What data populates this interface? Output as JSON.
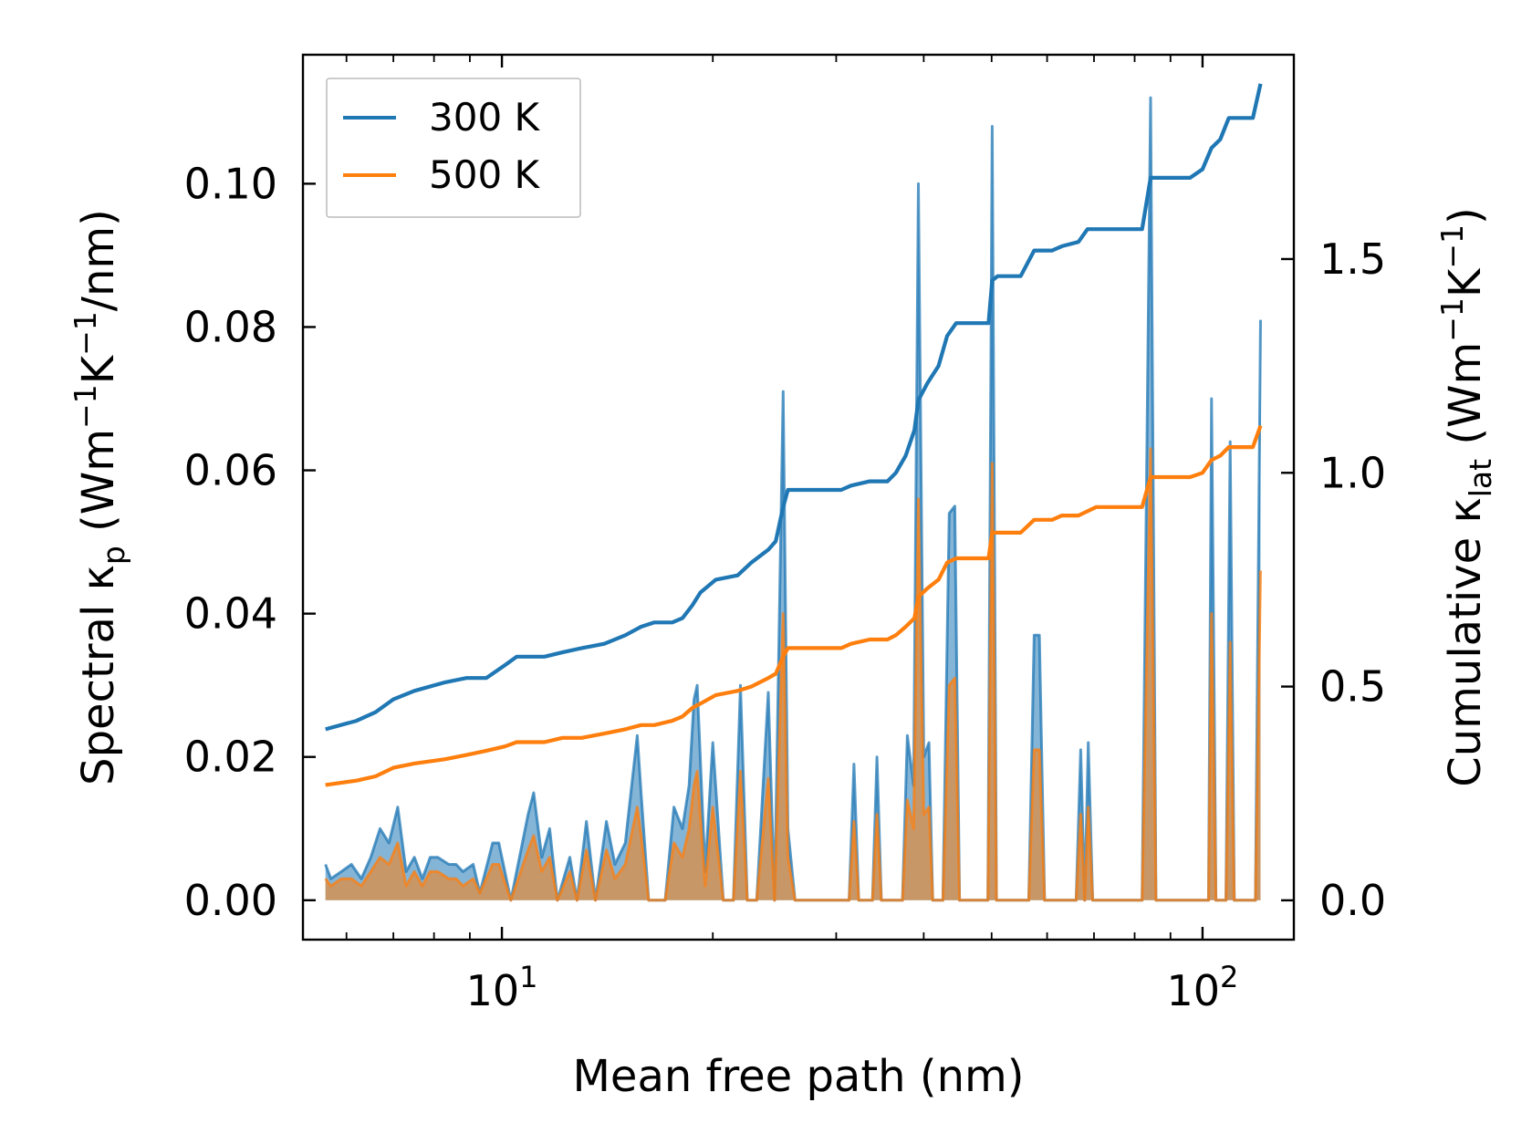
{
  "chart_data": {
    "type": "line",
    "xscale": "log",
    "xlim": [
      5.2,
      135
    ],
    "ylim_left": [
      -0.0055,
      0.118
    ],
    "ylim_right": [
      -0.092,
      1.9779
    ],
    "xlabel": "Mean free path (nm)",
    "ylabel_left": {
      "main": "Spectral κ",
      "sub": "p",
      "unit_open": " (Wm",
      "e1": "−1",
      "k": "K",
      "e2": "−1",
      "unit_close": "/nm)"
    },
    "ylabel_right": {
      "main": "Cumulative κ",
      "sub": "lat",
      "unit_open": " (Wm",
      "e1": "−1",
      "k": "K",
      "e2": "−1",
      "unit_close": ")"
    },
    "left_ticks": [
      {
        "value": 0.0,
        "label": "0.00"
      },
      {
        "value": 0.02,
        "label": "0.02"
      },
      {
        "value": 0.04,
        "label": "0.04"
      },
      {
        "value": 0.06,
        "label": "0.06"
      },
      {
        "value": 0.08,
        "label": "0.08"
      },
      {
        "value": 0.1,
        "label": "0.10"
      }
    ],
    "right_ticks": [
      {
        "value": 0.0,
        "label": "0.0"
      },
      {
        "value": 0.5,
        "label": "0.5"
      },
      {
        "value": 1.0,
        "label": "1.0"
      },
      {
        "value": 1.5,
        "label": "1.5"
      }
    ],
    "x_major_ticks": [
      {
        "value": 10,
        "base": "10",
        "exp": "1"
      },
      {
        "value": 100,
        "base": "10",
        "exp": "2"
      }
    ],
    "x_minor_ticks": [
      6,
      7,
      8,
      9,
      20,
      30,
      40,
      50,
      60,
      70,
      80,
      90
    ],
    "legend": {
      "position": "top-left",
      "entries": [
        "300 K",
        "500 K"
      ]
    },
    "series_colors": {
      "300 K": "#1f77b4",
      "500 K": "#ff7f0e"
    },
    "spectral": {
      "300 K": [
        [
          5.6,
          0.005
        ],
        [
          5.7,
          0.003
        ],
        [
          5.9,
          0.004
        ],
        [
          6.1,
          0.005
        ],
        [
          6.3,
          0.003
        ],
        [
          6.5,
          0.006
        ],
        [
          6.7,
          0.01
        ],
        [
          6.9,
          0.008
        ],
        [
          7.1,
          0.013
        ],
        [
          7.3,
          0.004
        ],
        [
          7.5,
          0.006
        ],
        [
          7.7,
          0.003
        ],
        [
          7.9,
          0.006
        ],
        [
          8.1,
          0.006
        ],
        [
          8.4,
          0.005
        ],
        [
          8.6,
          0.005
        ],
        [
          8.8,
          0.004
        ],
        [
          9.1,
          0.005
        ],
        [
          9.3,
          0.001
        ],
        [
          9.7,
          0.008
        ],
        [
          9.9,
          0.008
        ],
        [
          10.3,
          0.0
        ],
        [
          10.9,
          0.012
        ],
        [
          11.1,
          0.015
        ],
        [
          11.4,
          0.006
        ],
        [
          11.7,
          0.01
        ],
        [
          12.0,
          0.0
        ],
        [
          12.5,
          0.006
        ],
        [
          12.8,
          0.0
        ],
        [
          13.2,
          0.011
        ],
        [
          13.6,
          0.0
        ],
        [
          14.1,
          0.011
        ],
        [
          14.5,
          0.005
        ],
        [
          15.0,
          0.008
        ],
        [
          15.6,
          0.023
        ],
        [
          15.8,
          0.015
        ],
        [
          16.2,
          0.0
        ],
        [
          17.1,
          0.0
        ],
        [
          17.6,
          0.013
        ],
        [
          18.1,
          0.01
        ],
        [
          18.5,
          0.016
        ],
        [
          18.8,
          0.028
        ],
        [
          19.0,
          0.03
        ],
        [
          19.5,
          0.004
        ],
        [
          20.0,
          0.022
        ],
        [
          20.7,
          0.0
        ],
        [
          21.4,
          0.0
        ],
        [
          21.9,
          0.03
        ],
        [
          22.4,
          0.0
        ],
        [
          23.1,
          0.0
        ],
        [
          24.0,
          0.029
        ],
        [
          24.5,
          0.0
        ],
        [
          25.2,
          0.071
        ],
        [
          25.6,
          0.01
        ],
        [
          26.2,
          0.0
        ],
        [
          28.5,
          0.0
        ],
        [
          31.3,
          0.0
        ],
        [
          31.8,
          0.019
        ],
        [
          32.3,
          0.0
        ],
        [
          33.8,
          0.0
        ],
        [
          34.3,
          0.02
        ],
        [
          34.8,
          0.0
        ],
        [
          37.3,
          0.0
        ],
        [
          37.9,
          0.023
        ],
        [
          38.7,
          0.016
        ],
        [
          39.3,
          0.1
        ],
        [
          40.0,
          0.02
        ],
        [
          40.7,
          0.022
        ],
        [
          41.2,
          0.0
        ],
        [
          42.6,
          0.0
        ],
        [
          43.5,
          0.054
        ],
        [
          44.3,
          0.055
        ],
        [
          45.0,
          0.0
        ],
        [
          49.4,
          0.0
        ],
        [
          50.1,
          0.108
        ],
        [
          50.8,
          0.0
        ],
        [
          56.5,
          0.0
        ],
        [
          57.5,
          0.037
        ],
        [
          58.5,
          0.037
        ],
        [
          59.5,
          0.0
        ],
        [
          66.0,
          0.0
        ],
        [
          67.0,
          0.021
        ],
        [
          67.9,
          0.0
        ],
        [
          68.7,
          0.022
        ],
        [
          69.7,
          0.0
        ],
        [
          82.0,
          0.0
        ],
        [
          84.3,
          0.112
        ],
        [
          85.8,
          0.0
        ],
        [
          102.0,
          0.0
        ],
        [
          103.0,
          0.07
        ],
        [
          104.5,
          0.0
        ],
        [
          108.0,
          0.0
        ],
        [
          109.5,
          0.064
        ],
        [
          111.0,
          0.0
        ],
        [
          119.0,
          0.0
        ],
        [
          121.0,
          0.081
        ]
      ],
      "500 K": [
        [
          5.6,
          0.003
        ],
        [
          5.7,
          0.002
        ],
        [
          5.9,
          0.003
        ],
        [
          6.1,
          0.003
        ],
        [
          6.3,
          0.002
        ],
        [
          6.5,
          0.004
        ],
        [
          6.7,
          0.006
        ],
        [
          6.9,
          0.005
        ],
        [
          7.1,
          0.008
        ],
        [
          7.3,
          0.002
        ],
        [
          7.5,
          0.004
        ],
        [
          7.7,
          0.002
        ],
        [
          7.9,
          0.004
        ],
        [
          8.1,
          0.004
        ],
        [
          8.4,
          0.003
        ],
        [
          8.6,
          0.003
        ],
        [
          8.8,
          0.002
        ],
        [
          9.1,
          0.003
        ],
        [
          9.3,
          0.001
        ],
        [
          9.7,
          0.005
        ],
        [
          9.9,
          0.005
        ],
        [
          10.3,
          0.0
        ],
        [
          10.9,
          0.007
        ],
        [
          11.1,
          0.009
        ],
        [
          11.4,
          0.004
        ],
        [
          11.7,
          0.006
        ],
        [
          12.0,
          0.0
        ],
        [
          12.5,
          0.004
        ],
        [
          12.8,
          0.0
        ],
        [
          13.2,
          0.007
        ],
        [
          13.6,
          0.0
        ],
        [
          14.1,
          0.007
        ],
        [
          14.5,
          0.003
        ],
        [
          15.0,
          0.005
        ],
        [
          15.6,
          0.013
        ],
        [
          15.8,
          0.009
        ],
        [
          16.2,
          0.0
        ],
        [
          17.1,
          0.0
        ],
        [
          17.6,
          0.008
        ],
        [
          18.1,
          0.006
        ],
        [
          18.5,
          0.01
        ],
        [
          18.8,
          0.016
        ],
        [
          19.0,
          0.018
        ],
        [
          19.5,
          0.002
        ],
        [
          20.0,
          0.013
        ],
        [
          20.7,
          0.0
        ],
        [
          21.4,
          0.0
        ],
        [
          21.9,
          0.018
        ],
        [
          22.4,
          0.0
        ],
        [
          23.1,
          0.0
        ],
        [
          24.0,
          0.017
        ],
        [
          24.5,
          0.0
        ],
        [
          25.2,
          0.04
        ],
        [
          25.6,
          0.006
        ],
        [
          26.2,
          0.0
        ],
        [
          28.5,
          0.0
        ],
        [
          31.3,
          0.0
        ],
        [
          31.8,
          0.011
        ],
        [
          32.3,
          0.0
        ],
        [
          33.8,
          0.0
        ],
        [
          34.3,
          0.012
        ],
        [
          34.8,
          0.0
        ],
        [
          37.3,
          0.0
        ],
        [
          37.9,
          0.014
        ],
        [
          38.7,
          0.01
        ],
        [
          39.3,
          0.056
        ],
        [
          40.0,
          0.012
        ],
        [
          40.7,
          0.013
        ],
        [
          41.2,
          0.0
        ],
        [
          42.6,
          0.0
        ],
        [
          43.5,
          0.03
        ],
        [
          44.3,
          0.031
        ],
        [
          45.0,
          0.0
        ],
        [
          49.4,
          0.0
        ],
        [
          50.1,
          0.061
        ],
        [
          50.8,
          0.0
        ],
        [
          56.5,
          0.0
        ],
        [
          57.5,
          0.021
        ],
        [
          58.5,
          0.021
        ],
        [
          59.5,
          0.0
        ],
        [
          66.0,
          0.0
        ],
        [
          67.0,
          0.012
        ],
        [
          67.9,
          0.0
        ],
        [
          68.7,
          0.013
        ],
        [
          69.7,
          0.0
        ],
        [
          82.0,
          0.0
        ],
        [
          84.3,
          0.063
        ],
        [
          85.8,
          0.0
        ],
        [
          102.0,
          0.0
        ],
        [
          103.0,
          0.04
        ],
        [
          104.5,
          0.0
        ],
        [
          108.0,
          0.0
        ],
        [
          109.5,
          0.036
        ],
        [
          111.0,
          0.0
        ],
        [
          119.0,
          0.0
        ],
        [
          121.0,
          0.046
        ]
      ]
    },
    "cumulative": {
      "300 K": [
        [
          5.6,
          0.4
        ],
        [
          6.2,
          0.42
        ],
        [
          6.6,
          0.44
        ],
        [
          7.0,
          0.47
        ],
        [
          7.5,
          0.49
        ],
        [
          8.3,
          0.51
        ],
        [
          8.9,
          0.52
        ],
        [
          9.5,
          0.52
        ],
        [
          10.1,
          0.55
        ],
        [
          10.5,
          0.57
        ],
        [
          11.5,
          0.57
        ],
        [
          12.2,
          0.58
        ],
        [
          13.0,
          0.59
        ],
        [
          14.0,
          0.6
        ],
        [
          15.0,
          0.62
        ],
        [
          15.8,
          0.64
        ],
        [
          16.5,
          0.65
        ],
        [
          17.5,
          0.65
        ],
        [
          18.1,
          0.66
        ],
        [
          18.7,
          0.69
        ],
        [
          19.2,
          0.72
        ],
        [
          20.2,
          0.75
        ],
        [
          21.7,
          0.76
        ],
        [
          22.7,
          0.79
        ],
        [
          24.0,
          0.82
        ],
        [
          24.6,
          0.84
        ],
        [
          25.2,
          0.92
        ],
        [
          25.6,
          0.96
        ],
        [
          28.0,
          0.96
        ],
        [
          30.5,
          0.96
        ],
        [
          31.5,
          0.97
        ],
        [
          33.5,
          0.98
        ],
        [
          35.5,
          0.98
        ],
        [
          36.5,
          1.0
        ],
        [
          37.7,
          1.04
        ],
        [
          38.8,
          1.1
        ],
        [
          39.3,
          1.17
        ],
        [
          40.5,
          1.21
        ],
        [
          42.0,
          1.25
        ],
        [
          43.2,
          1.32
        ],
        [
          44.5,
          1.35
        ],
        [
          46.5,
          1.35
        ],
        [
          49.5,
          1.35
        ],
        [
          50.1,
          1.45
        ],
        [
          51.0,
          1.46
        ],
        [
          55.0,
          1.46
        ],
        [
          57.5,
          1.52
        ],
        [
          61.0,
          1.52
        ],
        [
          63.0,
          1.53
        ],
        [
          66.5,
          1.54
        ],
        [
          68.5,
          1.57
        ],
        [
          70.5,
          1.57
        ],
        [
          82.0,
          1.57
        ],
        [
          84.3,
          1.69
        ],
        [
          96.0,
          1.69
        ],
        [
          100.0,
          1.71
        ],
        [
          103.0,
          1.76
        ],
        [
          106.0,
          1.78
        ],
        [
          109.0,
          1.83
        ],
        [
          118.0,
          1.83
        ],
        [
          121.0,
          1.91
        ]
      ],
      "500 K": [
        [
          5.6,
          0.27
        ],
        [
          6.2,
          0.28
        ],
        [
          6.6,
          0.29
        ],
        [
          7.0,
          0.31
        ],
        [
          7.5,
          0.32
        ],
        [
          8.3,
          0.33
        ],
        [
          8.9,
          0.34
        ],
        [
          9.5,
          0.35
        ],
        [
          10.1,
          0.36
        ],
        [
          10.5,
          0.37
        ],
        [
          11.5,
          0.37
        ],
        [
          12.2,
          0.38
        ],
        [
          13.0,
          0.38
        ],
        [
          14.0,
          0.39
        ],
        [
          15.0,
          0.4
        ],
        [
          15.8,
          0.41
        ],
        [
          16.5,
          0.41
        ],
        [
          17.5,
          0.42
        ],
        [
          18.1,
          0.43
        ],
        [
          18.7,
          0.45
        ],
        [
          19.2,
          0.46
        ],
        [
          20.2,
          0.48
        ],
        [
          21.7,
          0.49
        ],
        [
          22.7,
          0.5
        ],
        [
          24.0,
          0.52
        ],
        [
          24.6,
          0.53
        ],
        [
          25.2,
          0.57
        ],
        [
          25.6,
          0.59
        ],
        [
          28.0,
          0.59
        ],
        [
          30.5,
          0.59
        ],
        [
          31.5,
          0.6
        ],
        [
          33.5,
          0.61
        ],
        [
          35.5,
          0.61
        ],
        [
          36.5,
          0.62
        ],
        [
          37.7,
          0.64
        ],
        [
          38.8,
          0.66
        ],
        [
          39.3,
          0.71
        ],
        [
          40.5,
          0.73
        ],
        [
          42.0,
          0.75
        ],
        [
          43.2,
          0.79
        ],
        [
          44.5,
          0.8
        ],
        [
          46.5,
          0.8
        ],
        [
          49.5,
          0.8
        ],
        [
          50.1,
          0.86
        ],
        [
          51.0,
          0.86
        ],
        [
          55.0,
          0.86
        ],
        [
          57.5,
          0.89
        ],
        [
          61.0,
          0.89
        ],
        [
          63.0,
          0.9
        ],
        [
          66.5,
          0.9
        ],
        [
          68.5,
          0.91
        ],
        [
          70.5,
          0.92
        ],
        [
          82.0,
          0.92
        ],
        [
          84.3,
          0.99
        ],
        [
          96.0,
          0.99
        ],
        [
          100.0,
          1.0
        ],
        [
          103.0,
          1.03
        ],
        [
          106.0,
          1.04
        ],
        [
          109.0,
          1.06
        ],
        [
          118.0,
          1.06
        ],
        [
          121.0,
          1.11
        ]
      ]
    }
  }
}
